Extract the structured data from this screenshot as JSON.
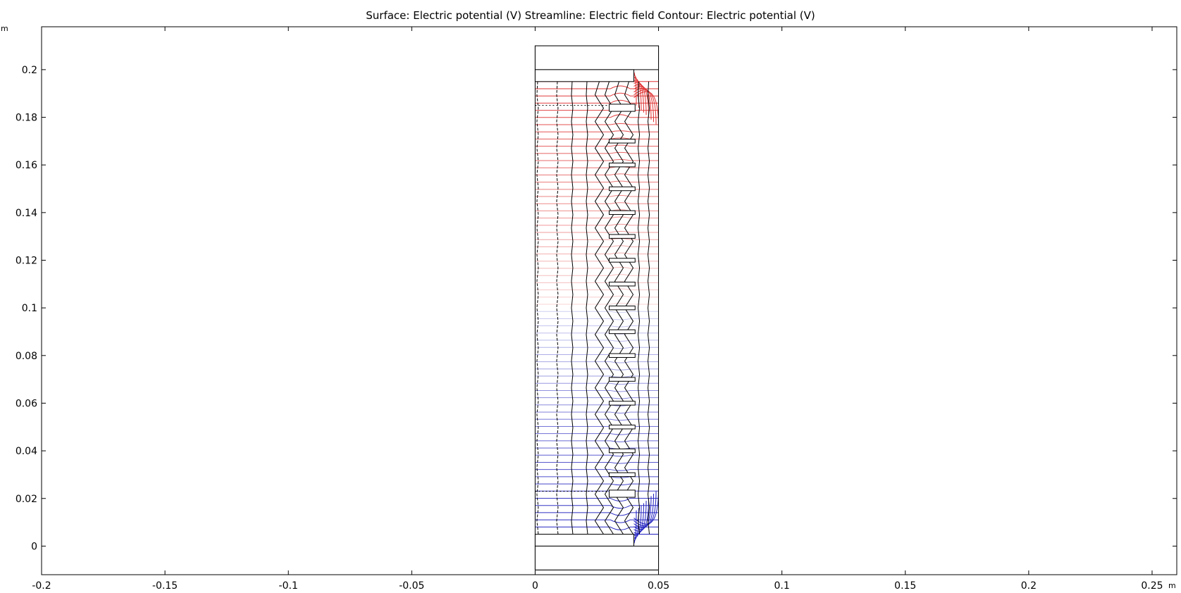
{
  "chart_data": {
    "type": "contour",
    "title": "Surface: Electric potential (V)  Streamline: Electric field  Contour: Electric potential (V)",
    "xunit": "m",
    "yunit": "m",
    "xlim": [
      -0.2,
      0.26
    ],
    "ylim": [
      -0.012,
      0.218
    ],
    "xticks": [
      -0.2,
      -0.15,
      -0.1,
      -0.05,
      0,
      0.05,
      0.1,
      0.15,
      0.2,
      0.25
    ],
    "xtick_labels": [
      "-0.2",
      "-0.15",
      "-0.1",
      "-0.05",
      "0",
      "0.05",
      "0.1",
      "0.15",
      "0.2",
      "0.25"
    ],
    "yticks": [
      0,
      0.02,
      0.04,
      0.06,
      0.08,
      0.1,
      0.12,
      0.14,
      0.16,
      0.18,
      0.2
    ],
    "ytick_labels": [
      "0",
      "0.02",
      "0.04",
      "0.06",
      "0.08",
      "0.1",
      "0.12",
      "0.14",
      "0.16",
      "0.18",
      "0.2"
    ],
    "grid": false,
    "legend": "none",
    "domain": {
      "x_min": 0,
      "x_max": 0.05,
      "y_min": -0.01,
      "y_max": 0.21
    },
    "plates": [
      {
        "name": "top-cap",
        "x": [
          0,
          0.05
        ],
        "y": [
          0.2,
          0.21
        ]
      },
      {
        "name": "top-electrode",
        "x": [
          0,
          0.04
        ],
        "y": [
          0.195,
          0.2
        ]
      },
      {
        "name": "bottom-electrode",
        "x": [
          0,
          0.04
        ],
        "y": [
          0,
          0.005
        ]
      },
      {
        "name": "bottom-cap",
        "x": [
          0,
          0.05
        ],
        "y": [
          -0.01,
          0
        ]
      }
    ],
    "ring_y_positions": [
      0.184,
      0.17,
      0.16,
      0.15,
      0.14,
      0.13,
      0.12,
      0.11,
      0.1,
      0.09,
      0.08,
      0.07,
      0.06,
      0.05,
      0.04,
      0.03,
      0.022
    ],
    "contour_levels_count": 64,
    "streamline_x_positions": [
      0.001,
      0.009,
      0.015,
      0.021,
      0.026,
      0.03,
      0.034,
      0.038,
      0.042,
      0.046
    ],
    "colors": {
      "high_potential": "#e03030",
      "low_potential": "#2020c0",
      "streamline": "#000000",
      "axes": "#000000"
    }
  }
}
